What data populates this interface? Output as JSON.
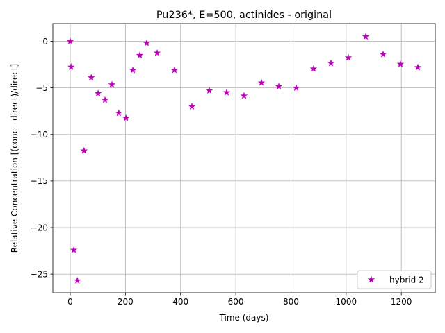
{
  "chart_data": {
    "type": "scatter",
    "title": "Pu236*, E=500, actinides - original",
    "xlabel": "Time (days)",
    "ylabel": "Relative Concentration [(conc - direct)/direct]",
    "xlim": [
      -63,
      1323
    ],
    "ylim": [
      -27.0,
      1.9
    ],
    "xticks": [
      0,
      200,
      400,
      600,
      800,
      1000,
      1200
    ],
    "yticks": [
      0,
      -5,
      -10,
      -15,
      -20,
      -25
    ],
    "grid": true,
    "legend": {
      "position": "lower-right",
      "entries": [
        "hybrid 2"
      ]
    },
    "series": [
      {
        "name": "hybrid 2",
        "marker": "star",
        "color": "#bf00bf",
        "x": [
          0,
          3,
          13,
          26,
          50,
          76,
          101,
          126,
          151,
          176,
          202,
          227,
          252,
          277,
          315,
          378,
          441,
          504,
          567,
          630,
          693,
          756,
          819,
          882,
          945,
          1008,
          1071,
          1134,
          1197,
          1260
        ],
        "y": [
          0.0,
          -2.75,
          -22.4,
          -25.7,
          -11.75,
          -3.9,
          -5.6,
          -6.3,
          -4.65,
          -7.7,
          -8.25,
          -3.1,
          -1.5,
          -0.2,
          -1.25,
          -3.1,
          -7.0,
          -5.3,
          -5.5,
          -5.85,
          -4.45,
          -4.85,
          -5.0,
          -2.95,
          -2.35,
          -1.75,
          0.5,
          -1.4,
          -2.45,
          -2.8
        ]
      }
    ]
  }
}
